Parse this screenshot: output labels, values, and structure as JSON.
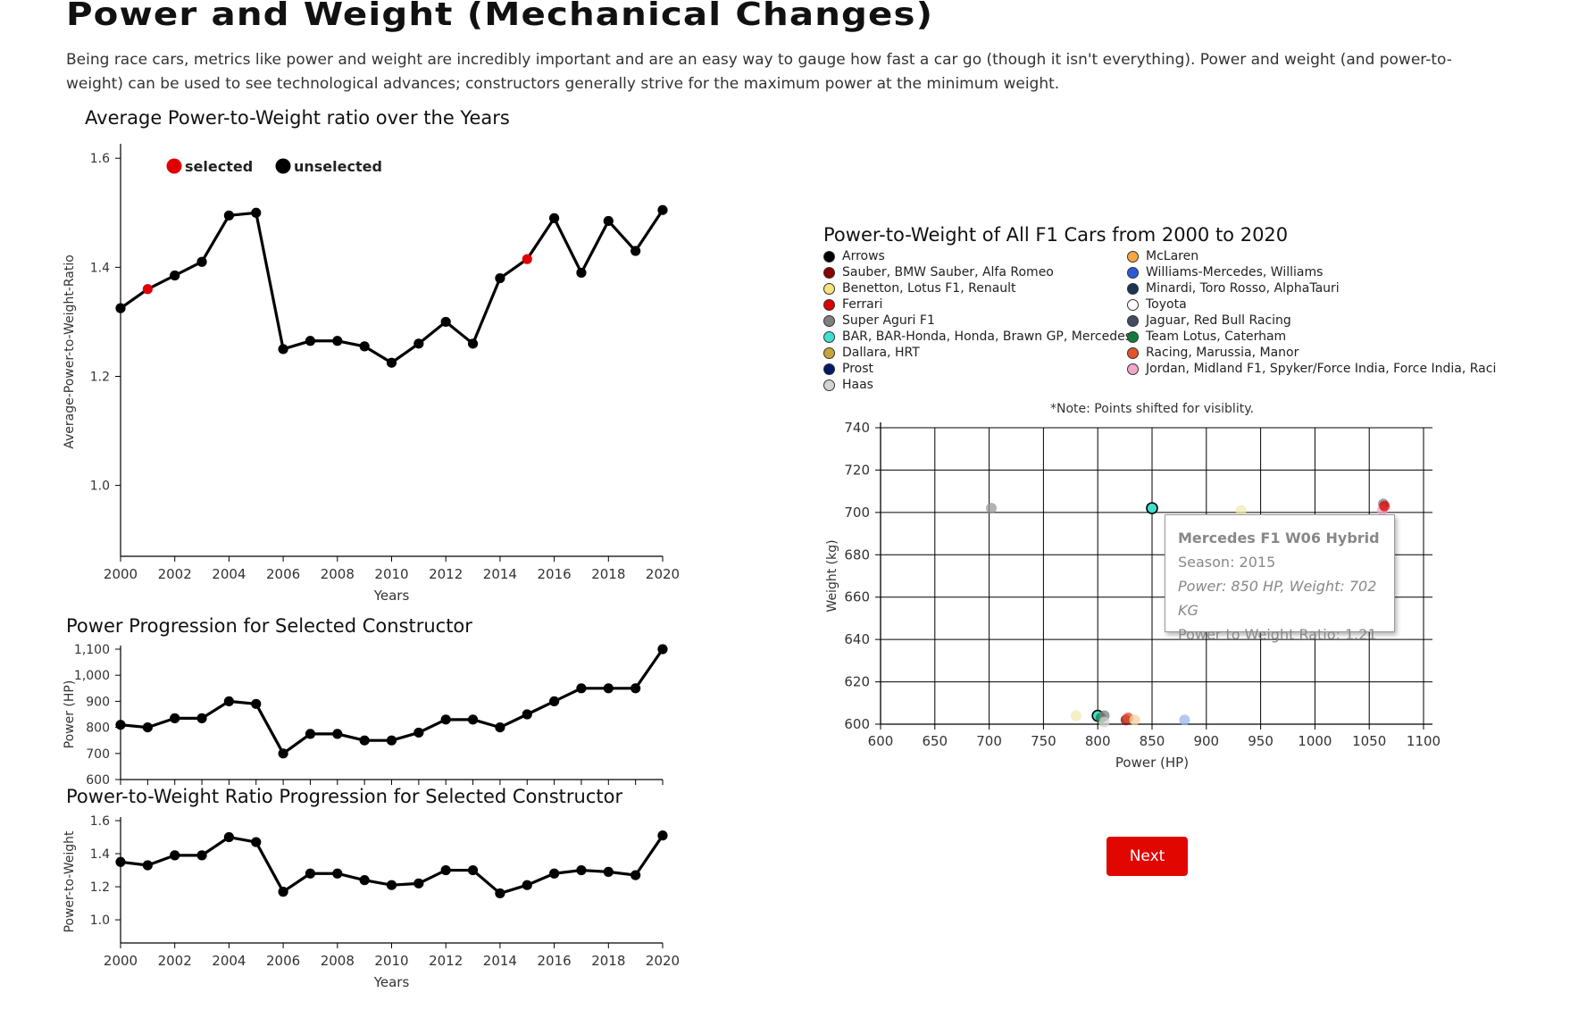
{
  "page": {
    "title": "Power and Weight (Mechanical Changes)",
    "intro": "Being race cars, metrics like power and weight are incredibly important and are an easy way to gauge how fast a car go (though it isn't everything). Power and weight (and power-to-weight) can be used to see technological advances; constructors generally strive for the maximum power at the minimum weight.",
    "next_label": "Next"
  },
  "colors": {
    "selected": "#e00000",
    "unselected": "#000000",
    "button": "#e10600"
  },
  "chart_data": [
    {
      "id": "avg",
      "type": "line",
      "title": "Average Power-to-Weight ratio over the Years",
      "xlabel": "Years",
      "ylabel": "Average-Power-to-Weight-Ratio",
      "xlim": [
        2000,
        2020
      ],
      "ylim": [
        0.87,
        1.62
      ],
      "yticks": [
        1.0,
        1.2,
        1.4,
        1.6
      ],
      "xticks": [
        2000,
        2002,
        2004,
        2006,
        2008,
        2010,
        2012,
        2014,
        2016,
        2018,
        2020
      ],
      "legend": {
        "position": "top-left",
        "selected_label": "selected",
        "unselected_label": "unselected"
      },
      "x": [
        2000,
        2001,
        2002,
        2003,
        2004,
        2005,
        2006,
        2007,
        2008,
        2009,
        2010,
        2011,
        2012,
        2013,
        2014,
        2015,
        2016,
        2017,
        2018,
        2019,
        2020
      ],
      "y": [
        1.325,
        1.36,
        1.385,
        1.41,
        1.495,
        1.5,
        1.25,
        1.265,
        1.265,
        1.255,
        1.225,
        1.26,
        1.3,
        1.26,
        1.38,
        1.415,
        1.49,
        1.39,
        1.485,
        1.43,
        1.505
      ],
      "selected": [
        2001,
        2015
      ]
    },
    {
      "id": "power",
      "type": "line",
      "title": "Power Progression for Selected Constructor",
      "xlabel": "",
      "ylabel": "Power (HP)",
      "xlim": [
        2000,
        2020
      ],
      "ylim": [
        600,
        1100
      ],
      "yticks": [
        600,
        700,
        800,
        900,
        1000,
        1100
      ],
      "ytick_labels": [
        "600",
        "700",
        "800",
        "900",
        "1,000",
        "1,100"
      ],
      "x": [
        2000,
        2001,
        2002,
        2003,
        2004,
        2005,
        2006,
        2007,
        2008,
        2009,
        2010,
        2011,
        2012,
        2013,
        2014,
        2015,
        2016,
        2017,
        2018,
        2019,
        2020
      ],
      "y": [
        810,
        800,
        835,
        835,
        900,
        890,
        700,
        775,
        775,
        750,
        750,
        780,
        830,
        830,
        800,
        850,
        900,
        950,
        950,
        950,
        1100
      ]
    },
    {
      "id": "ptw",
      "type": "line",
      "title": "Power-to-Weight Ratio Progression for Selected Constructor",
      "xlabel": "Years",
      "ylabel": "Power-to-Weight",
      "xlim": [
        2000,
        2020
      ],
      "ylim": [
        0.86,
        1.6
      ],
      "yticks": [
        1.0,
        1.2,
        1.4,
        1.6
      ],
      "xticks": [
        2000,
        2002,
        2004,
        2006,
        2008,
        2010,
        2012,
        2014,
        2016,
        2018,
        2020
      ],
      "x": [
        2000,
        2001,
        2002,
        2003,
        2004,
        2005,
        2006,
        2007,
        2008,
        2009,
        2010,
        2011,
        2012,
        2013,
        2014,
        2015,
        2016,
        2017,
        2018,
        2019,
        2020
      ],
      "y": [
        1.35,
        1.33,
        1.39,
        1.39,
        1.5,
        1.47,
        1.17,
        1.28,
        1.28,
        1.24,
        1.21,
        1.22,
        1.3,
        1.3,
        1.16,
        1.21,
        1.28,
        1.3,
        1.29,
        1.27,
        1.51
      ]
    },
    {
      "id": "scatter",
      "type": "scatter",
      "title": "Power-to-Weight of All F1 Cars from 2000 to 2020",
      "note": "*Note: Points shifted for visiblity.",
      "xlabel": "Power (HP)",
      "ylabel": "Weight (kg)",
      "xlim": [
        600,
        1100
      ],
      "ylim": [
        600,
        740
      ],
      "xticks": [
        600,
        650,
        700,
        750,
        800,
        850,
        900,
        950,
        1000,
        1050,
        1100
      ],
      "yticks": [
        600,
        620,
        640,
        660,
        680,
        700,
        720,
        740
      ],
      "grid": true,
      "legend": [
        {
          "name": "Arrows",
          "color": "#000000"
        },
        {
          "name": "Sauber, BMW Sauber, Alfa Romeo",
          "color": "#8b0000"
        },
        {
          "name": "Benetton, Lotus F1, Renault",
          "color": "#f5e27a"
        },
        {
          "name": "Ferrari",
          "color": "#dc0000"
        },
        {
          "name": "Super Aguri F1",
          "color": "#7f7f7f"
        },
        {
          "name": "BAR, BAR-Honda, Honda, Brawn GP, Mercedes",
          "color": "#40e0d0"
        },
        {
          "name": "Dallara, HRT",
          "color": "#c8a43a"
        },
        {
          "name": "Prost",
          "color": "#001a66"
        },
        {
          "name": "Haas",
          "color": "#d3d3d3"
        },
        {
          "name": "McLaren",
          "color": "#f5a742"
        },
        {
          "name": "Williams-Mercedes, Williams",
          "color": "#2a5bd7"
        },
        {
          "name": "Minardi, Toro Rosso, AlphaTauri",
          "color": "#1b3554"
        },
        {
          "name": "Toyota",
          "color": "#ffffff"
        },
        {
          "name": "Jaguar, Red Bull Racing",
          "color": "#454a63"
        },
        {
          "name": "Team Lotus, Caterham",
          "color": "#167a3c"
        },
        {
          "name": "Racing, Marussia, Manor",
          "color": "#e0532b"
        },
        {
          "name": "Jordan, Midland F1, Spyker/Force India, Force India, Raci",
          "color": "#f1a7c8"
        }
      ],
      "points": [
        {
          "x": 702,
          "y": 702,
          "color": "#9a9a9a"
        },
        {
          "x": 850,
          "y": 702,
          "color": "#40e0d0",
          "highlight": true
        },
        {
          "x": 932,
          "y": 701,
          "color": "#f0eab0"
        },
        {
          "x": 1063,
          "y": 704,
          "color": "#7f7f7f"
        },
        {
          "x": 1062,
          "y": 701,
          "color": "#f1a7c8"
        },
        {
          "x": 1064,
          "y": 703,
          "color": "#dc0000"
        },
        {
          "x": 780,
          "y": 604,
          "color": "#f0eab0"
        },
        {
          "x": 800,
          "y": 604,
          "color": "#40e0d0",
          "highlight": true
        },
        {
          "x": 803,
          "y": 603,
          "color": "#167a3c"
        },
        {
          "x": 806,
          "y": 604,
          "color": "#7f7f7f"
        },
        {
          "x": 806,
          "y": 601,
          "color": "#d3d3d3"
        },
        {
          "x": 826,
          "y": 602,
          "color": "#8b0000"
        },
        {
          "x": 828,
          "y": 603,
          "color": "#e0532b"
        },
        {
          "x": 834,
          "y": 602,
          "color": "#f5d0a0"
        },
        {
          "x": 880,
          "y": 602,
          "color": "#9fb4f0"
        }
      ],
      "tooltip": {
        "name": "Mercedes F1 W06 Hybrid",
        "season": "Season: 2015",
        "stats": "Power: 850 HP, Weight: 702 KG",
        "ratio": "Power to Weight Ratio: 1.21"
      }
    }
  ]
}
